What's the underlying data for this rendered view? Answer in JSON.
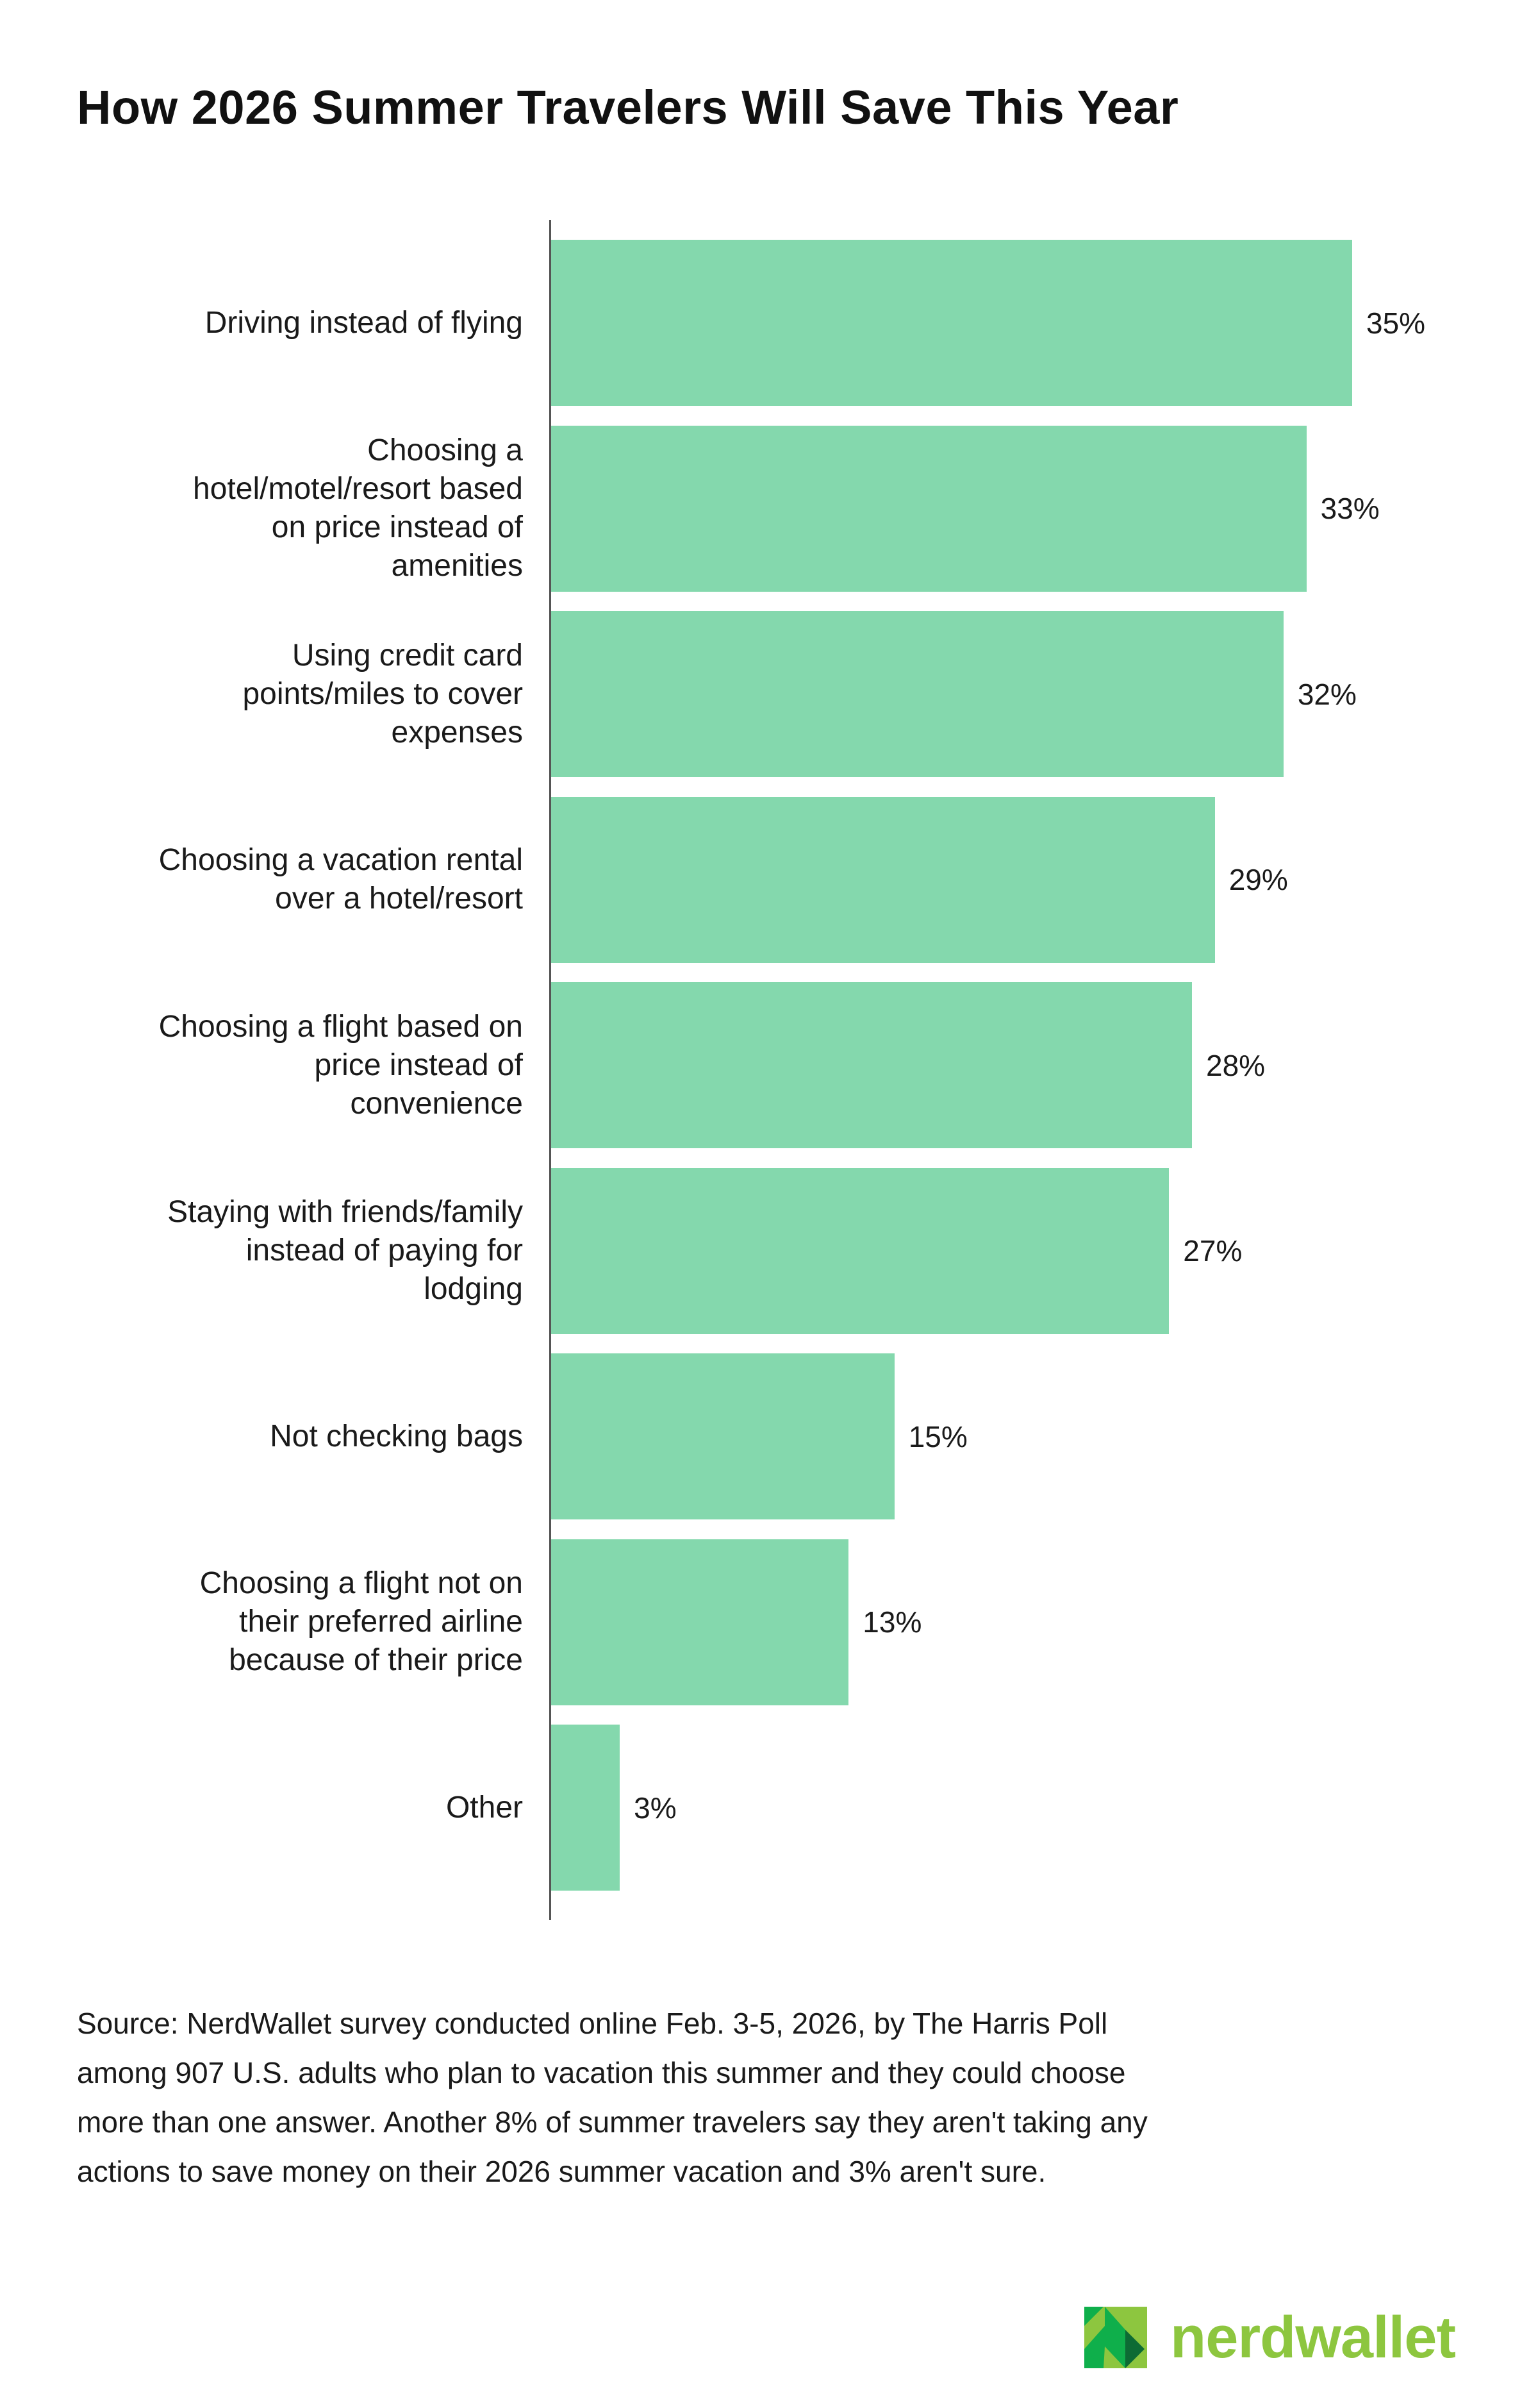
{
  "chart_data": {
    "type": "bar",
    "orientation": "horizontal",
    "title": "How 2026 Summer Travelers Will Save This Year",
    "categories": [
      "Driving instead of flying",
      "Choosing a\nhotel/motel/resort based\non price instead of\namenities",
      "Using credit card\npoints/miles to cover\nexpenses",
      "Choosing a vacation rental\nover a hotel/resort",
      "Choosing a flight based on\nprice instead of\nconvenience",
      "Staying with friends/family\ninstead of paying for\nlodging",
      "Not checking bags",
      "Choosing a flight not on\ntheir preferred airline\nbecause of their price",
      "Other"
    ],
    "values": [
      35,
      33,
      32,
      29,
      28,
      27,
      15,
      13,
      3
    ],
    "value_labels": [
      "35%",
      "33%",
      "32%",
      "29%",
      "28%",
      "27%",
      "15%",
      "13%",
      "3%"
    ],
    "xlabel": "",
    "ylabel": "",
    "xlim": [
      0,
      35
    ],
    "grid": false,
    "bar_color": "#84d8ad"
  },
  "source": "Source: NerdWallet survey conducted online Feb. 3-5, 2026, by The Harris Poll\namong 907 U.S. adults who plan to vacation this summer and they could choose\nmore than one answer. Another 8% of summer travelers say they aren't taking any\nactions to save money on their 2026 summer vacation and 3% aren't sure.",
  "logo": {
    "text": "nerdwallet",
    "colors": [
      "#0faf4b",
      "#8dc63f",
      "#0d6b34"
    ]
  }
}
